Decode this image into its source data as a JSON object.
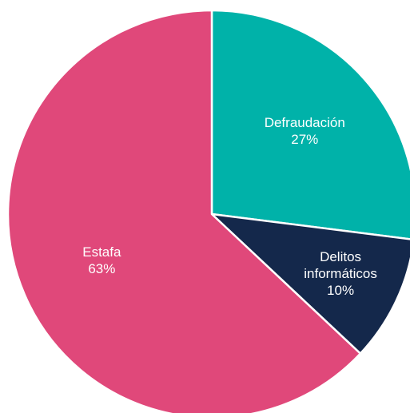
{
  "chart_data": {
    "type": "pie",
    "slices": [
      {
        "label": [
          "Defraudación"
        ],
        "percent_label": "27%",
        "value": 27,
        "color": "#00b2a9"
      },
      {
        "label": [
          "Delitos",
          "informáticos"
        ],
        "percent_label": "10%",
        "value": 10,
        "color": "#14284b"
      },
      {
        "label": [
          "Estafa"
        ],
        "percent_label": "63%",
        "value": 63,
        "color": "#e0487a"
      }
    ],
    "start_angle": "top (12 o'clock)",
    "direction": "clockwise",
    "slice_border_color": "#ffffff"
  }
}
